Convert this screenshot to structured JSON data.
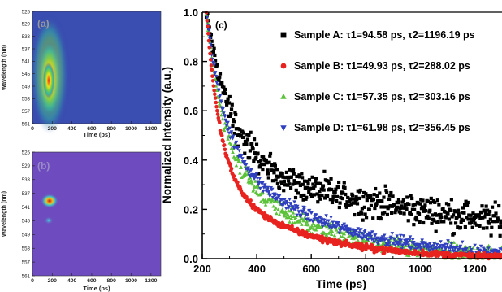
{
  "chart_data": [
    {
      "panel": "(a)",
      "type": "heatmap",
      "xlabel": "Time (ps)",
      "ylabel": "Wavelength (nm)",
      "xlim": [
        0,
        1300
      ],
      "ylim": [
        525,
        561
      ],
      "xticks": [
        "0",
        "200",
        "400",
        "600",
        "800",
        "1000",
        "1200"
      ],
      "yticks": [
        "525",
        "529",
        "533",
        "537",
        "541",
        "545",
        "549",
        "553",
        "557",
        "561"
      ],
      "y_reversed": true,
      "background_color": "#3a4db0",
      "peak": {
        "x": 200,
        "y": 545,
        "intensity": 1.0
      },
      "emission_band_nm": [
        527,
        561
      ]
    },
    {
      "panel": "(b)",
      "type": "heatmap",
      "xlabel": "Time (ps)",
      "ylabel": "Wavelength (nm)",
      "xlim": [
        0,
        1300
      ],
      "ylim": [
        525,
        561
      ],
      "xticks": [
        "0",
        "200",
        "400",
        "600",
        "800",
        "1000",
        "1200"
      ],
      "yticks": [
        "525",
        "529",
        "533",
        "537",
        "541",
        "545",
        "549",
        "553",
        "557",
        "561"
      ],
      "y_reversed": true,
      "background_color": "#6e4bbe",
      "peaks": [
        {
          "x": 195,
          "y": 541.5,
          "intensity": 1.0
        },
        {
          "x": 190,
          "y": 546.5,
          "intensity": 0.35
        }
      ]
    },
    {
      "panel": "(c)",
      "type": "scatter",
      "xlabel": "Time (ps)",
      "ylabel": "Normalized Intensity (a.u.)",
      "xlim": [
        200,
        1300
      ],
      "ylim": [
        0.0,
        1.0
      ],
      "xticks": [
        200,
        400,
        600,
        800,
        1000,
        1200
      ],
      "yticks": [
        0.0,
        0.2,
        0.4,
        0.6,
        0.8,
        1.0
      ],
      "legend_position": "top-right",
      "series": [
        {
          "name": "Sample A",
          "tau1_label": "τ1=94.58 ps",
          "tau2_label": "τ2=1196.19 ps",
          "tau1": 94.58,
          "tau2": 1196.19,
          "a1": 0.62,
          "a2": 0.38,
          "t0": 215,
          "marker": "square",
          "color": "#000000",
          "noise": 0.03
        },
        {
          "name": "Sample B",
          "tau1_label": "τ1=49.93 ps",
          "tau2_label": "τ2=288.02 ps",
          "tau1": 49.93,
          "tau2": 288.02,
          "a1": 0.65,
          "a2": 0.35,
          "t0": 215,
          "marker": "circle",
          "color": "#e8231f",
          "noise": 0.006
        },
        {
          "name": "Sample C",
          "tau1_label": "τ1=57.35 ps",
          "tau2_label": "τ2=303.16 ps",
          "tau1": 57.35,
          "tau2": 303.16,
          "a1": 0.52,
          "a2": 0.48,
          "t0": 215,
          "marker": "triangle-up",
          "color": "#5cc23a",
          "noise": 0.018
        },
        {
          "name": "Sample D",
          "tau1_label": "τ1=61.98 ps",
          "tau2_label": "τ2=356.45 ps",
          "tau1": 61.98,
          "tau2": 356.45,
          "a1": 0.5,
          "a2": 0.5,
          "t0": 215,
          "marker": "triangle-down",
          "color": "#2f3fbf",
          "noise": 0.012
        }
      ]
    }
  ]
}
